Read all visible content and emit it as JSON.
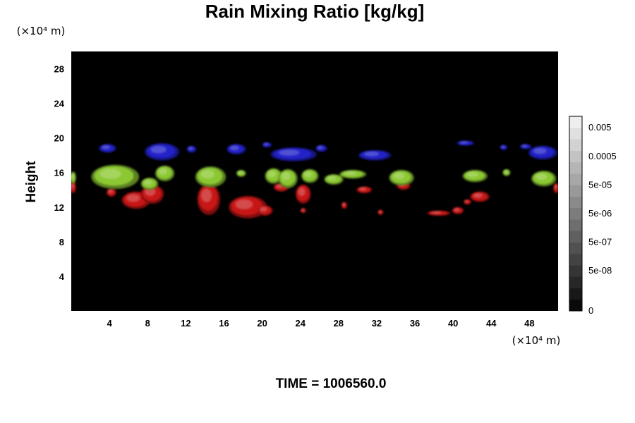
{
  "chart_data": {
    "type": "heatmap",
    "title": "Rain Mixing Ratio [kg/kg]",
    "ylabel": "Height",
    "y_unit": "(×10⁴ m)",
    "x_unit": "(×10⁴ m)",
    "x_ticks": [
      4,
      8,
      12,
      16,
      20,
      24,
      28,
      32,
      36,
      40,
      44,
      48
    ],
    "y_ticks": [
      4,
      8,
      12,
      16,
      20,
      24,
      28
    ],
    "xlim": [
      0,
      51
    ],
    "ylim": [
      0,
      30
    ],
    "background_color": "#000000",
    "colorbar": {
      "tick_labels": [
        "0",
        "5e-08",
        "5e-07",
        "5e-06",
        "5e-05",
        "0.0005",
        "0.005"
      ],
      "n_levels": 17
    },
    "footer": "TIME = 1006560.0",
    "layers": [
      {
        "color": "#2020c8",
        "regions": [
          {
            "x": 3.8,
            "y": 18.8,
            "rx": 0.9,
            "ry": 0.5
          },
          {
            "x": 9.5,
            "y": 18.4,
            "rx": 1.8,
            "ry": 1.0
          },
          {
            "x": 12.6,
            "y": 18.7,
            "rx": 0.5,
            "ry": 0.4
          },
          {
            "x": 17.3,
            "y": 18.7,
            "rx": 1.0,
            "ry": 0.6
          },
          {
            "x": 20.5,
            "y": 19.2,
            "rx": 0.5,
            "ry": 0.3
          },
          {
            "x": 23.3,
            "y": 18.1,
            "rx": 2.4,
            "ry": 0.8
          },
          {
            "x": 26.2,
            "y": 18.8,
            "rx": 0.6,
            "ry": 0.4
          },
          {
            "x": 31.8,
            "y": 18.0,
            "rx": 1.7,
            "ry": 0.6
          },
          {
            "x": 41.3,
            "y": 19.4,
            "rx": 0.9,
            "ry": 0.3
          },
          {
            "x": 45.3,
            "y": 18.9,
            "rx": 0.4,
            "ry": 0.3
          },
          {
            "x": 47.6,
            "y": 19.0,
            "rx": 0.6,
            "ry": 0.3
          },
          {
            "x": 49.4,
            "y": 18.3,
            "rx": 1.5,
            "ry": 0.8
          }
        ]
      },
      {
        "color": "#c81818",
        "regions": [
          {
            "x": 0.2,
            "y": 14.3,
            "rx": 0.3,
            "ry": 0.7
          },
          {
            "x": 4.2,
            "y": 13.7,
            "rx": 0.5,
            "ry": 0.5
          },
          {
            "x": 6.8,
            "y": 12.8,
            "rx": 1.5,
            "ry": 1.0
          },
          {
            "x": 8.5,
            "y": 13.5,
            "rx": 1.2,
            "ry": 1.1
          },
          {
            "x": 14.4,
            "y": 12.9,
            "rx": 1.2,
            "ry": 1.8
          },
          {
            "x": 18.5,
            "y": 12.0,
            "rx": 2.0,
            "ry": 1.3
          },
          {
            "x": 20.3,
            "y": 11.6,
            "rx": 0.8,
            "ry": 0.6
          },
          {
            "x": 22.0,
            "y": 14.3,
            "rx": 0.8,
            "ry": 0.5
          },
          {
            "x": 24.3,
            "y": 13.5,
            "rx": 0.8,
            "ry": 1.1
          },
          {
            "x": 24.3,
            "y": 11.6,
            "rx": 0.3,
            "ry": 0.3
          },
          {
            "x": 28.6,
            "y": 12.2,
            "rx": 0.3,
            "ry": 0.4
          },
          {
            "x": 30.7,
            "y": 14.0,
            "rx": 0.8,
            "ry": 0.4
          },
          {
            "x": 32.4,
            "y": 11.4,
            "rx": 0.3,
            "ry": 0.3
          },
          {
            "x": 34.8,
            "y": 14.5,
            "rx": 0.7,
            "ry": 0.5
          },
          {
            "x": 38.5,
            "y": 11.3,
            "rx": 1.2,
            "ry": 0.3
          },
          {
            "x": 40.5,
            "y": 11.6,
            "rx": 0.6,
            "ry": 0.4
          },
          {
            "x": 41.5,
            "y": 12.6,
            "rx": 0.4,
            "ry": 0.3
          },
          {
            "x": 42.8,
            "y": 13.2,
            "rx": 1.0,
            "ry": 0.6
          },
          {
            "x": 50.8,
            "y": 14.2,
            "rx": 0.3,
            "ry": 0.6
          }
        ]
      },
      {
        "color": "#8cc832",
        "regions": [
          {
            "x": 0.2,
            "y": 15.4,
            "rx": 0.3,
            "ry": 0.7
          },
          {
            "x": 4.6,
            "y": 15.5,
            "rx": 2.5,
            "ry": 1.4
          },
          {
            "x": 8.2,
            "y": 14.7,
            "rx": 0.9,
            "ry": 0.7
          },
          {
            "x": 9.8,
            "y": 15.9,
            "rx": 1.0,
            "ry": 0.9
          },
          {
            "x": 14.6,
            "y": 15.5,
            "rx": 1.6,
            "ry": 1.2
          },
          {
            "x": 17.8,
            "y": 15.9,
            "rx": 0.5,
            "ry": 0.4
          },
          {
            "x": 21.2,
            "y": 15.6,
            "rx": 0.9,
            "ry": 0.9
          },
          {
            "x": 22.7,
            "y": 15.3,
            "rx": 1.0,
            "ry": 1.1
          },
          {
            "x": 25.0,
            "y": 15.6,
            "rx": 0.9,
            "ry": 0.8
          },
          {
            "x": 27.5,
            "y": 15.2,
            "rx": 1.0,
            "ry": 0.6
          },
          {
            "x": 29.5,
            "y": 15.8,
            "rx": 1.4,
            "ry": 0.5
          },
          {
            "x": 34.6,
            "y": 15.4,
            "rx": 1.3,
            "ry": 0.9
          },
          {
            "x": 42.3,
            "y": 15.6,
            "rx": 1.3,
            "ry": 0.7
          },
          {
            "x": 45.6,
            "y": 16.0,
            "rx": 0.4,
            "ry": 0.4
          },
          {
            "x": 49.5,
            "y": 15.3,
            "rx": 1.3,
            "ry": 0.9
          }
        ]
      }
    ]
  }
}
